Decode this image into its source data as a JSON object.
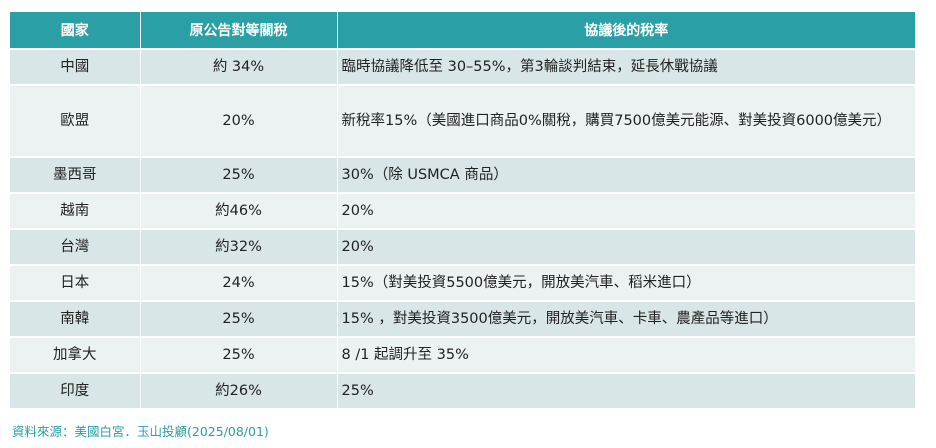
{
  "table": {
    "headers": [
      "國家",
      "原公告對等關稅",
      "協議後的稅率"
    ],
    "rows": [
      {
        "country": "中國",
        "original": "約 34%",
        "after": "臨時協議降低至 30–55%，第3輪談判結束，延長休戰協議"
      },
      {
        "country": "歐盟",
        "original": "20%",
        "after": "新稅率15%（美國進口商品0%關稅，購買7500億美元能源、對美投資6000億美元）"
      },
      {
        "country": "墨西哥",
        "original": "25%",
        "after": " 30%（除 USMCA 商品）"
      },
      {
        "country": "越南",
        "original": "約46%",
        "after": "20%"
      },
      {
        "country": "台灣",
        "original": "約32%",
        "after": "20%"
      },
      {
        "country": "日本",
        "original": "24%",
        "after": " 15%（對美投資5500億美元，開放美汽車、稻米進口）"
      },
      {
        "country": "南韓",
        "original": "25%",
        "after": " 15% ，對美投資3500億美元，開放美汽車、卡車、農產品等進口）"
      },
      {
        "country": "加拿大",
        "original": "25%",
        "after": "8 /1 起調升至 35%"
      },
      {
        "country": "印度",
        "original": "約26%",
        "after": "25%"
      }
    ]
  },
  "source_note": "資料來源：美國白宮．玉山投顧(2025/08/01)"
}
